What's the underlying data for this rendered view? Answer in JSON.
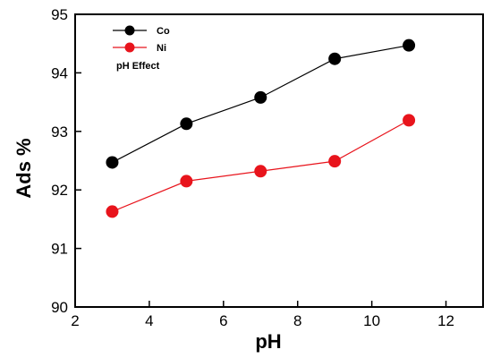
{
  "chart_data": {
    "type": "line",
    "title": "",
    "xlabel": "pH",
    "ylabel": "Ads %",
    "xlim": [
      2,
      13
    ],
    "ylim": [
      90,
      95
    ],
    "x_ticks": [
      2,
      4,
      6,
      8,
      10,
      12
    ],
    "y_ticks": [
      90,
      91,
      92,
      93,
      94,
      95
    ],
    "x": [
      3,
      5,
      7,
      9,
      11
    ],
    "series": [
      {
        "name": "Co",
        "color": "#000000",
        "values": [
          92.47,
          93.13,
          93.58,
          94.24,
          94.47
        ]
      },
      {
        "name": "Ni",
        "color": "#e8141c",
        "values": [
          91.63,
          92.15,
          92.32,
          92.49,
          93.19
        ]
      }
    ],
    "annotation": "pH Effect",
    "grid": false,
    "legend_position": "top-left"
  }
}
